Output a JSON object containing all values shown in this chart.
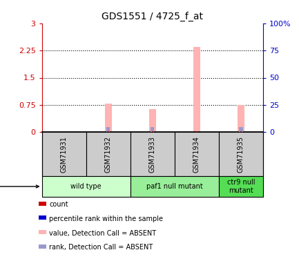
{
  "title": "GDS1551 / 4725_f_at",
  "samples": [
    "GSM71931",
    "GSM71932",
    "GSM71933",
    "GSM71934",
    "GSM71935"
  ],
  "pink_bar_values": [
    0.0,
    0.78,
    0.64,
    2.35,
    0.75
  ],
  "blue_bar_values": [
    0.0,
    0.13,
    0.13,
    0.0,
    0.13
  ],
  "red_bar_values": [
    0.0,
    0.03,
    0.03,
    0.03,
    0.03
  ],
  "ylim_left": [
    0,
    3
  ],
  "ylim_right": [
    0,
    100
  ],
  "yticks_left": [
    0,
    0.75,
    1.5,
    2.25,
    3
  ],
  "yticks_right": [
    0,
    25,
    50,
    75,
    100
  ],
  "ytick_labels_left": [
    "0",
    "0.75",
    "1.5",
    "2.25",
    "3"
  ],
  "ytick_labels_right": [
    "0",
    "25",
    "50",
    "75",
    "100%"
  ],
  "left_color": "#cc0000",
  "right_color": "#0000cc",
  "pink_color": "#ffb3b3",
  "blue_bar_color": "#9999cc",
  "red_bar_color": "#cc0000",
  "pink_bar_width": 0.15,
  "blue_bar_width": 0.08,
  "red_bar_width": 0.04,
  "sample_box_color": "#cccccc",
  "group_x": [
    {
      "label": "wild type",
      "xstart": -0.5,
      "xend": 1.5,
      "color": "#ccffcc"
    },
    {
      "label": "paf1 null mutant",
      "xstart": 1.5,
      "xend": 3.5,
      "color": "#99ee99"
    },
    {
      "label": "ctr9 null\nmutant",
      "xstart": 3.5,
      "xend": 4.5,
      "color": "#55dd55"
    }
  ],
  "legend_items": [
    {
      "color": "#cc0000",
      "label": "count"
    },
    {
      "color": "#0000cc",
      "label": "percentile rank within the sample"
    },
    {
      "color": "#ffb3b3",
      "label": "value, Detection Call = ABSENT"
    },
    {
      "color": "#9999cc",
      "label": "rank, Detection Call = ABSENT"
    }
  ]
}
